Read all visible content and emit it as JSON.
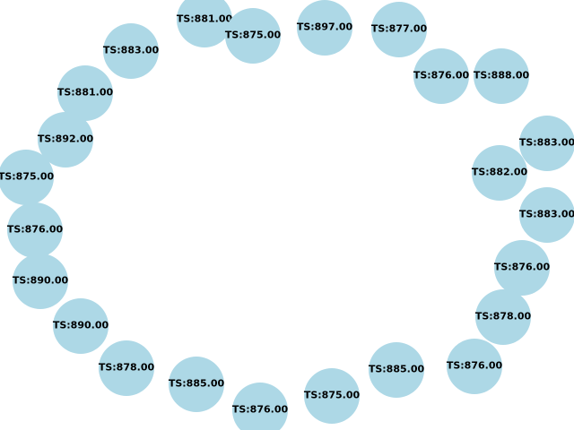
{
  "colors": {
    "node_fill": "#add8e6",
    "label_text": "#000000",
    "background": "#ffffff"
  },
  "nodes": [
    {
      "id": "n1",
      "label": "TS:881.00"
    },
    {
      "id": "n2",
      "label": "TS:875.00"
    },
    {
      "id": "n3",
      "label": "TS:897.00"
    },
    {
      "id": "n4",
      "label": "TS:877.00"
    },
    {
      "id": "n5",
      "label": "TS:883.00"
    },
    {
      "id": "n6",
      "label": "TS:876.00"
    },
    {
      "id": "n7",
      "label": "TS:888.00"
    },
    {
      "id": "n8",
      "label": "TS:881.00"
    },
    {
      "id": "n9",
      "label": "TS:892.00"
    },
    {
      "id": "n10",
      "label": "TS:883.00"
    },
    {
      "id": "n11",
      "label": "TS:882.00"
    },
    {
      "id": "n12",
      "label": "TS:875.00"
    },
    {
      "id": "n13",
      "label": "TS:883.00"
    },
    {
      "id": "n14",
      "label": "TS:876.00"
    },
    {
      "id": "n15",
      "label": "TS:876.00"
    },
    {
      "id": "n16",
      "label": "TS:890.00"
    },
    {
      "id": "n17",
      "label": "TS:878.00"
    },
    {
      "id": "n18",
      "label": "TS:890.00"
    },
    {
      "id": "n19",
      "label": "TS:876.00"
    },
    {
      "id": "n20",
      "label": "TS:878.00"
    },
    {
      "id": "n21",
      "label": "TS:885.00"
    },
    {
      "id": "n22",
      "label": "TS:885.00"
    },
    {
      "id": "n23",
      "label": "TS:875.00"
    },
    {
      "id": "n24",
      "label": "TS:876.00"
    }
  ]
}
